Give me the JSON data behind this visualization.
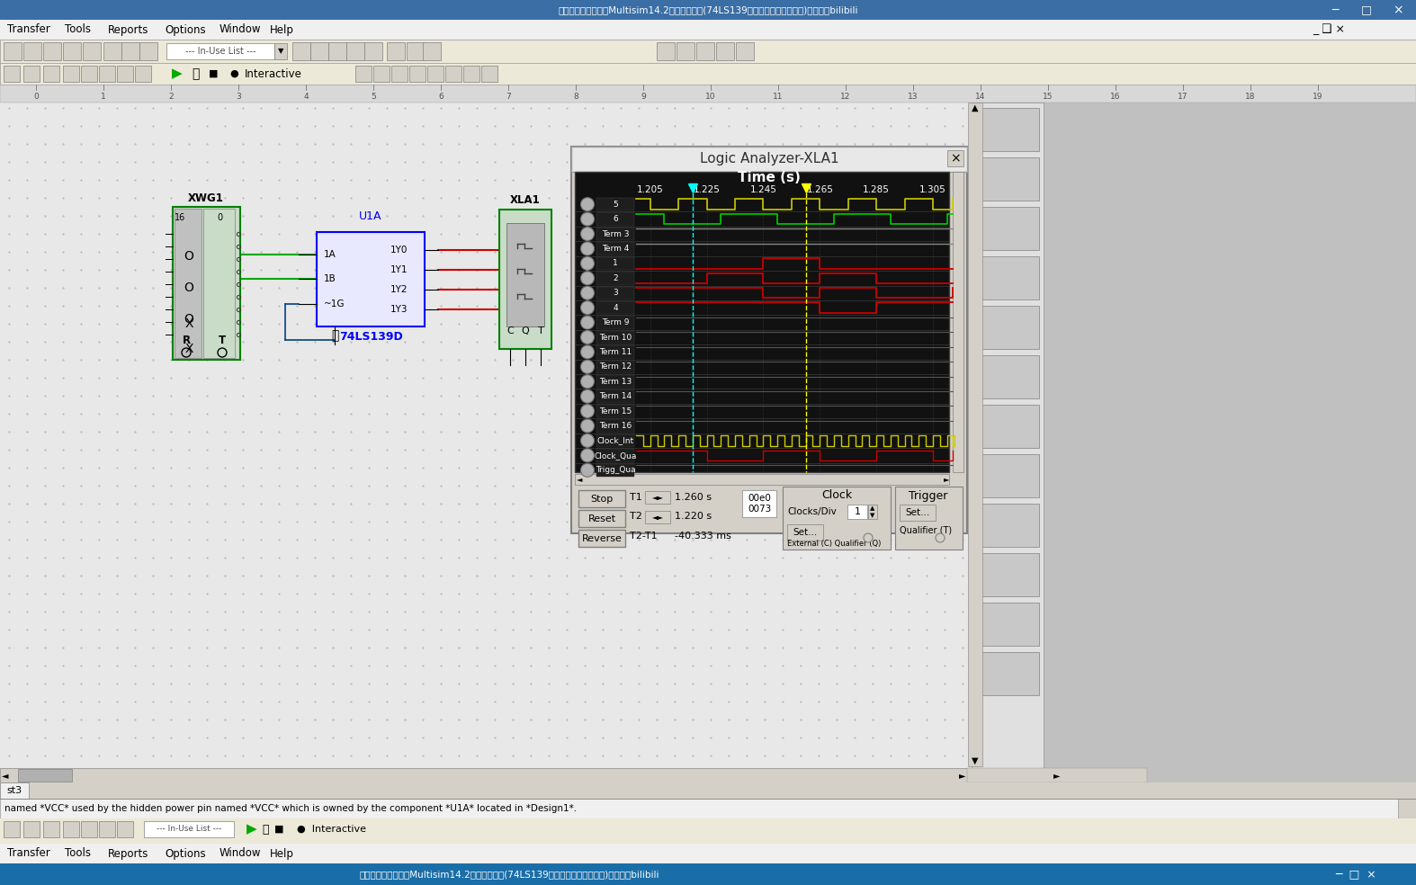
{
  "title": "Logic Analyzer-XLA1",
  "time_axis_label": "Time (s)",
  "time_ticks": [
    1.205,
    1.225,
    1.245,
    1.265,
    1.285,
    1.305
  ],
  "channel_labels": [
    "5",
    "6",
    "Term 3",
    "Term 4",
    "1",
    "2",
    "3",
    "4",
    "Term 9",
    "Term 10",
    "Term 11",
    "Term 12",
    "Term 13",
    "Term 14",
    "Term 15",
    "Term 16",
    "Clock_Int",
    "Clock_Qua",
    "Trigg_Qua"
  ],
  "window_title": "计算机仿真电子技术Multisim14.2组合逻辑电路(74LS139二线到四线译码器仿真)哔哩哔哩bilibili",
  "menu_items": [
    "Transfer",
    "Tools",
    "Reports",
    "Options",
    "Window",
    "Help"
  ],
  "t1_val": "1.260 s",
  "t2_val": "1.220 s",
  "t2t1_val": "-40.333 ms",
  "hex1": "00e0",
  "hex2": "0073",
  "clock_label": "Clock",
  "clocks_div_label": "Clocks/Div",
  "clocks_div_val": "1",
  "trigger_label": "Trigger",
  "qualifier_label": "External (C) Qualifier (Q)",
  "qualifier_t": "Qualifier (T)",
  "status_text": "named *VCC* used by the hidden power pin named *VCC* which is owned by the component *U1A* located in *Design1*.",
  "tab_text": "st3"
}
